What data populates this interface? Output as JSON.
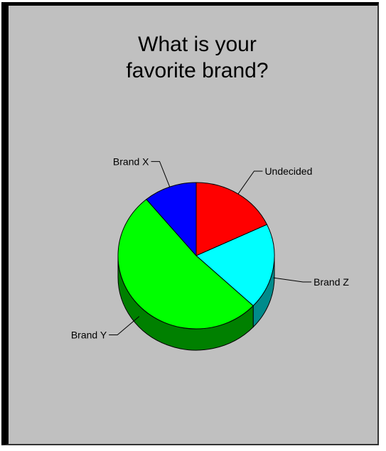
{
  "chart_data": {
    "type": "pie",
    "title": "What is your favorite brand?",
    "title_lines": [
      "What is your",
      "favorite brand?"
    ],
    "slices": [
      {
        "label": "Undecided",
        "value": 18,
        "color": "#ff0000",
        "side_color": "#b00000"
      },
      {
        "label": "Brand Z",
        "value": 19,
        "color": "#00ffff",
        "side_color": "#008b8b"
      },
      {
        "label": "Brand Y",
        "value": 52,
        "color": "#00ff00",
        "side_color": "#008000"
      },
      {
        "label": "Brand X",
        "value": 11,
        "color": "#0000ff",
        "side_color": "#00008b"
      }
    ],
    "background": "#c0c0c0",
    "legend": "none",
    "grid": false,
    "style": "3d"
  }
}
